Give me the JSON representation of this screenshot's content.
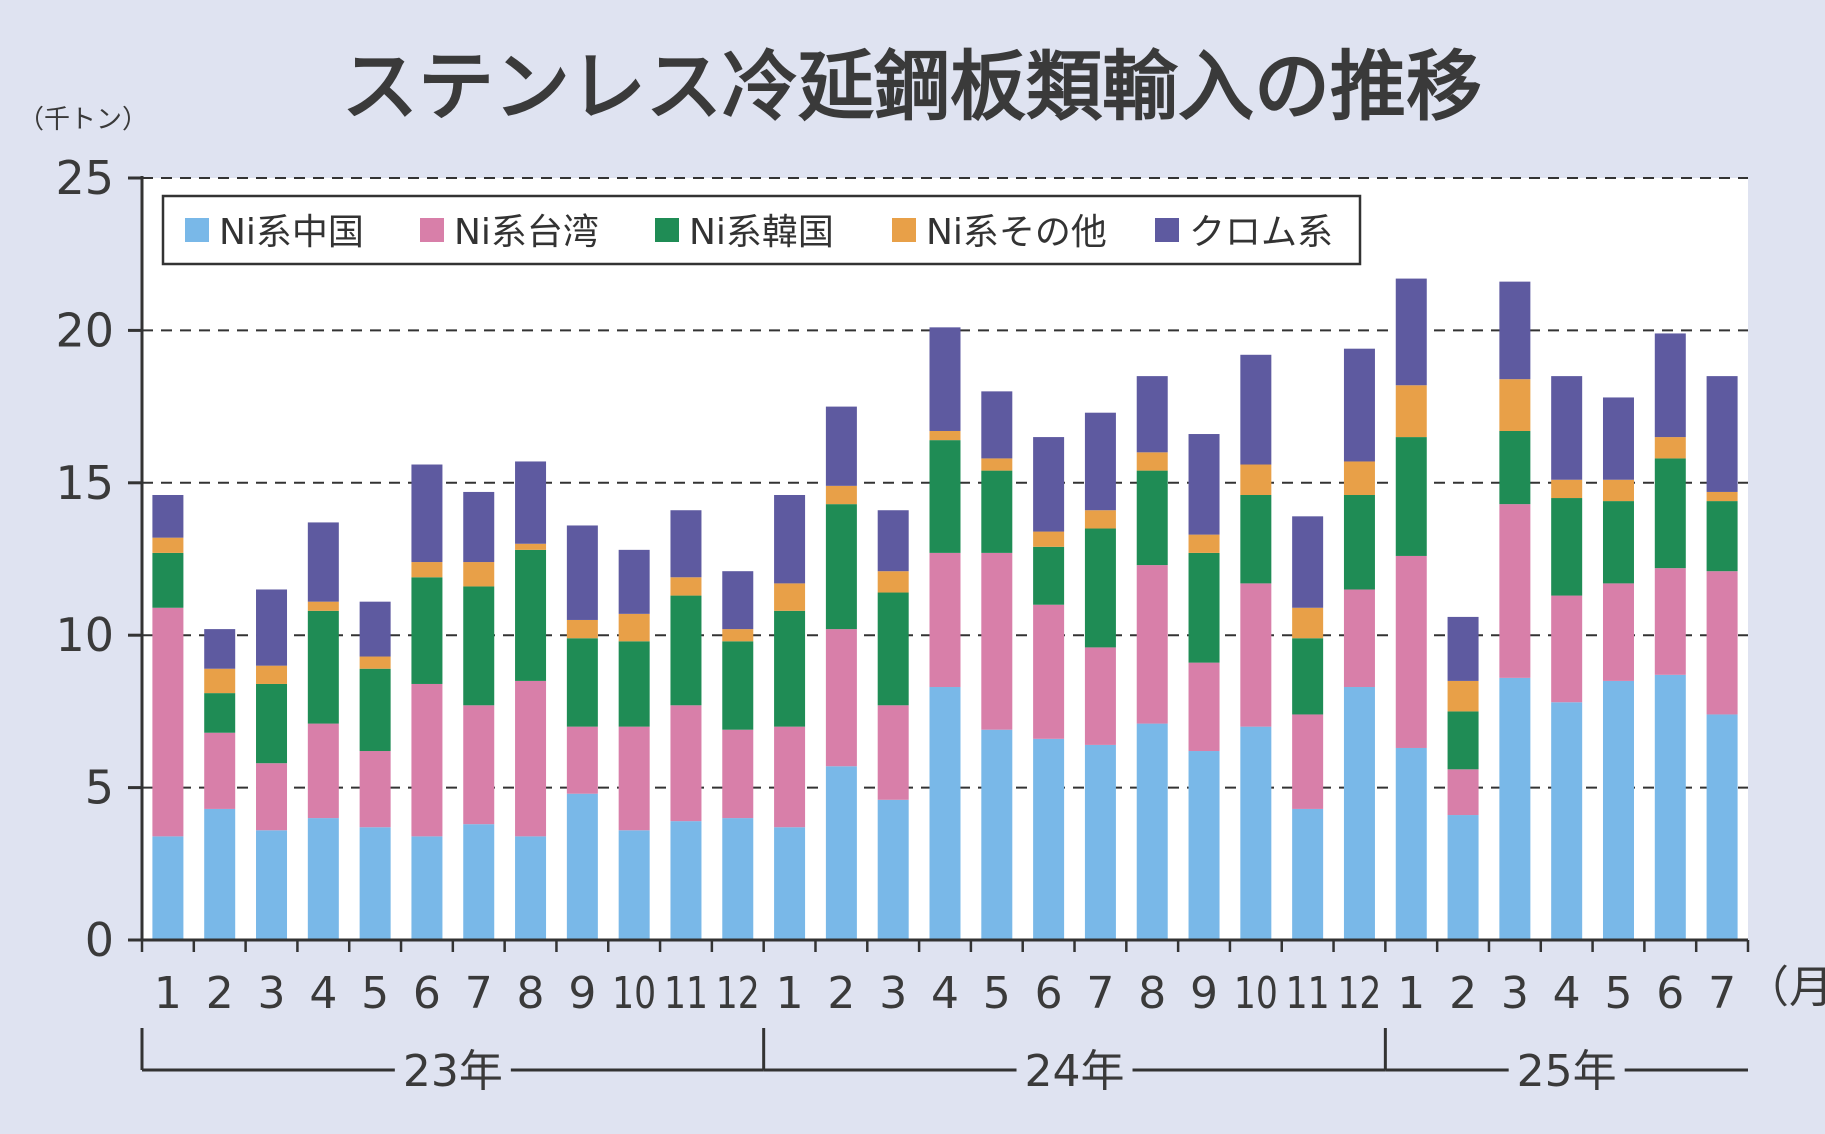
{
  "chart_data": {
    "type": "stacked-bar",
    "title": "ステンレス冷延鋼板類輸入の推移",
    "unit": "（千トン）",
    "x_unit": "（月）",
    "ylim": [
      0,
      25
    ],
    "y_ticks": [
      "0",
      "5",
      "10",
      "15",
      "20",
      "25"
    ],
    "grid": "dashed horizontal",
    "legend_position": "top-left",
    "categories": [
      "1",
      "2",
      "3",
      "4",
      "5",
      "6",
      "7",
      "8",
      "9",
      "10",
      "11",
      "12",
      "1",
      "2",
      "3",
      "4",
      "5",
      "6",
      "7",
      "8",
      "9",
      "10",
      "11",
      "12",
      "1",
      "2",
      "3",
      "4",
      "5",
      "6",
      "7"
    ],
    "years": [
      {
        "label": "23年",
        "start": 0,
        "end": 11
      },
      {
        "label": "24年",
        "start": 12,
        "end": 23
      },
      {
        "label": "25年",
        "start": 24,
        "end": 30
      }
    ],
    "series": [
      {
        "name": "Ni系中国",
        "color": "#79b8e8",
        "values": [
          3.4,
          4.3,
          3.6,
          4.0,
          3.7,
          3.4,
          3.8,
          3.4,
          4.8,
          3.6,
          3.9,
          4.0,
          3.7,
          5.7,
          4.6,
          8.3,
          6.9,
          6.6,
          6.4,
          7.1,
          6.2,
          7.0,
          4.3,
          8.3,
          6.3,
          4.1,
          8.6,
          7.8,
          8.5,
          8.7,
          7.4
        ]
      },
      {
        "name": "Ni系台湾",
        "color": "#d87fa9",
        "values": [
          7.5,
          2.5,
          2.2,
          3.1,
          2.5,
          5.0,
          3.9,
          5.1,
          2.2,
          3.4,
          3.8,
          2.9,
          3.3,
          4.5,
          3.1,
          4.4,
          5.8,
          4.4,
          3.2,
          5.2,
          2.9,
          4.7,
          3.1,
          3.2,
          6.3,
          1.5,
          5.7,
          3.5,
          3.2,
          3.5,
          4.7
        ]
      },
      {
        "name": "Ni系韓国",
        "color": "#1f8c55",
        "values": [
          1.8,
          1.3,
          2.6,
          3.7,
          2.7,
          3.5,
          3.9,
          4.3,
          2.9,
          2.8,
          3.6,
          2.9,
          3.8,
          4.1,
          3.7,
          3.7,
          2.7,
          1.9,
          3.9,
          3.1,
          3.6,
          2.9,
          2.5,
          3.1,
          3.9,
          1.9,
          2.4,
          3.2,
          2.7,
          3.6,
          2.3
        ]
      },
      {
        "name": "Ni系その他",
        "color": "#e8a048",
        "values": [
          0.5,
          0.8,
          0.6,
          0.3,
          0.4,
          0.5,
          0.8,
          0.2,
          0.6,
          0.9,
          0.6,
          0.4,
          0.9,
          0.6,
          0.7,
          0.3,
          0.4,
          0.5,
          0.6,
          0.6,
          0.6,
          1.0,
          1.0,
          1.1,
          1.7,
          1.0,
          1.7,
          0.6,
          0.7,
          0.7,
          0.3
        ]
      },
      {
        "name": "クロム系",
        "color": "#5e5aa0",
        "values": [
          1.4,
          1.3,
          2.5,
          2.6,
          1.8,
          3.2,
          2.3,
          2.7,
          3.1,
          2.1,
          2.2,
          1.9,
          2.9,
          2.6,
          2.0,
          3.4,
          2.2,
          3.1,
          3.2,
          2.5,
          3.3,
          3.6,
          3.0,
          3.7,
          3.5,
          2.1,
          3.2,
          3.4,
          2.7,
          3.4,
          3.8
        ]
      }
    ]
  }
}
